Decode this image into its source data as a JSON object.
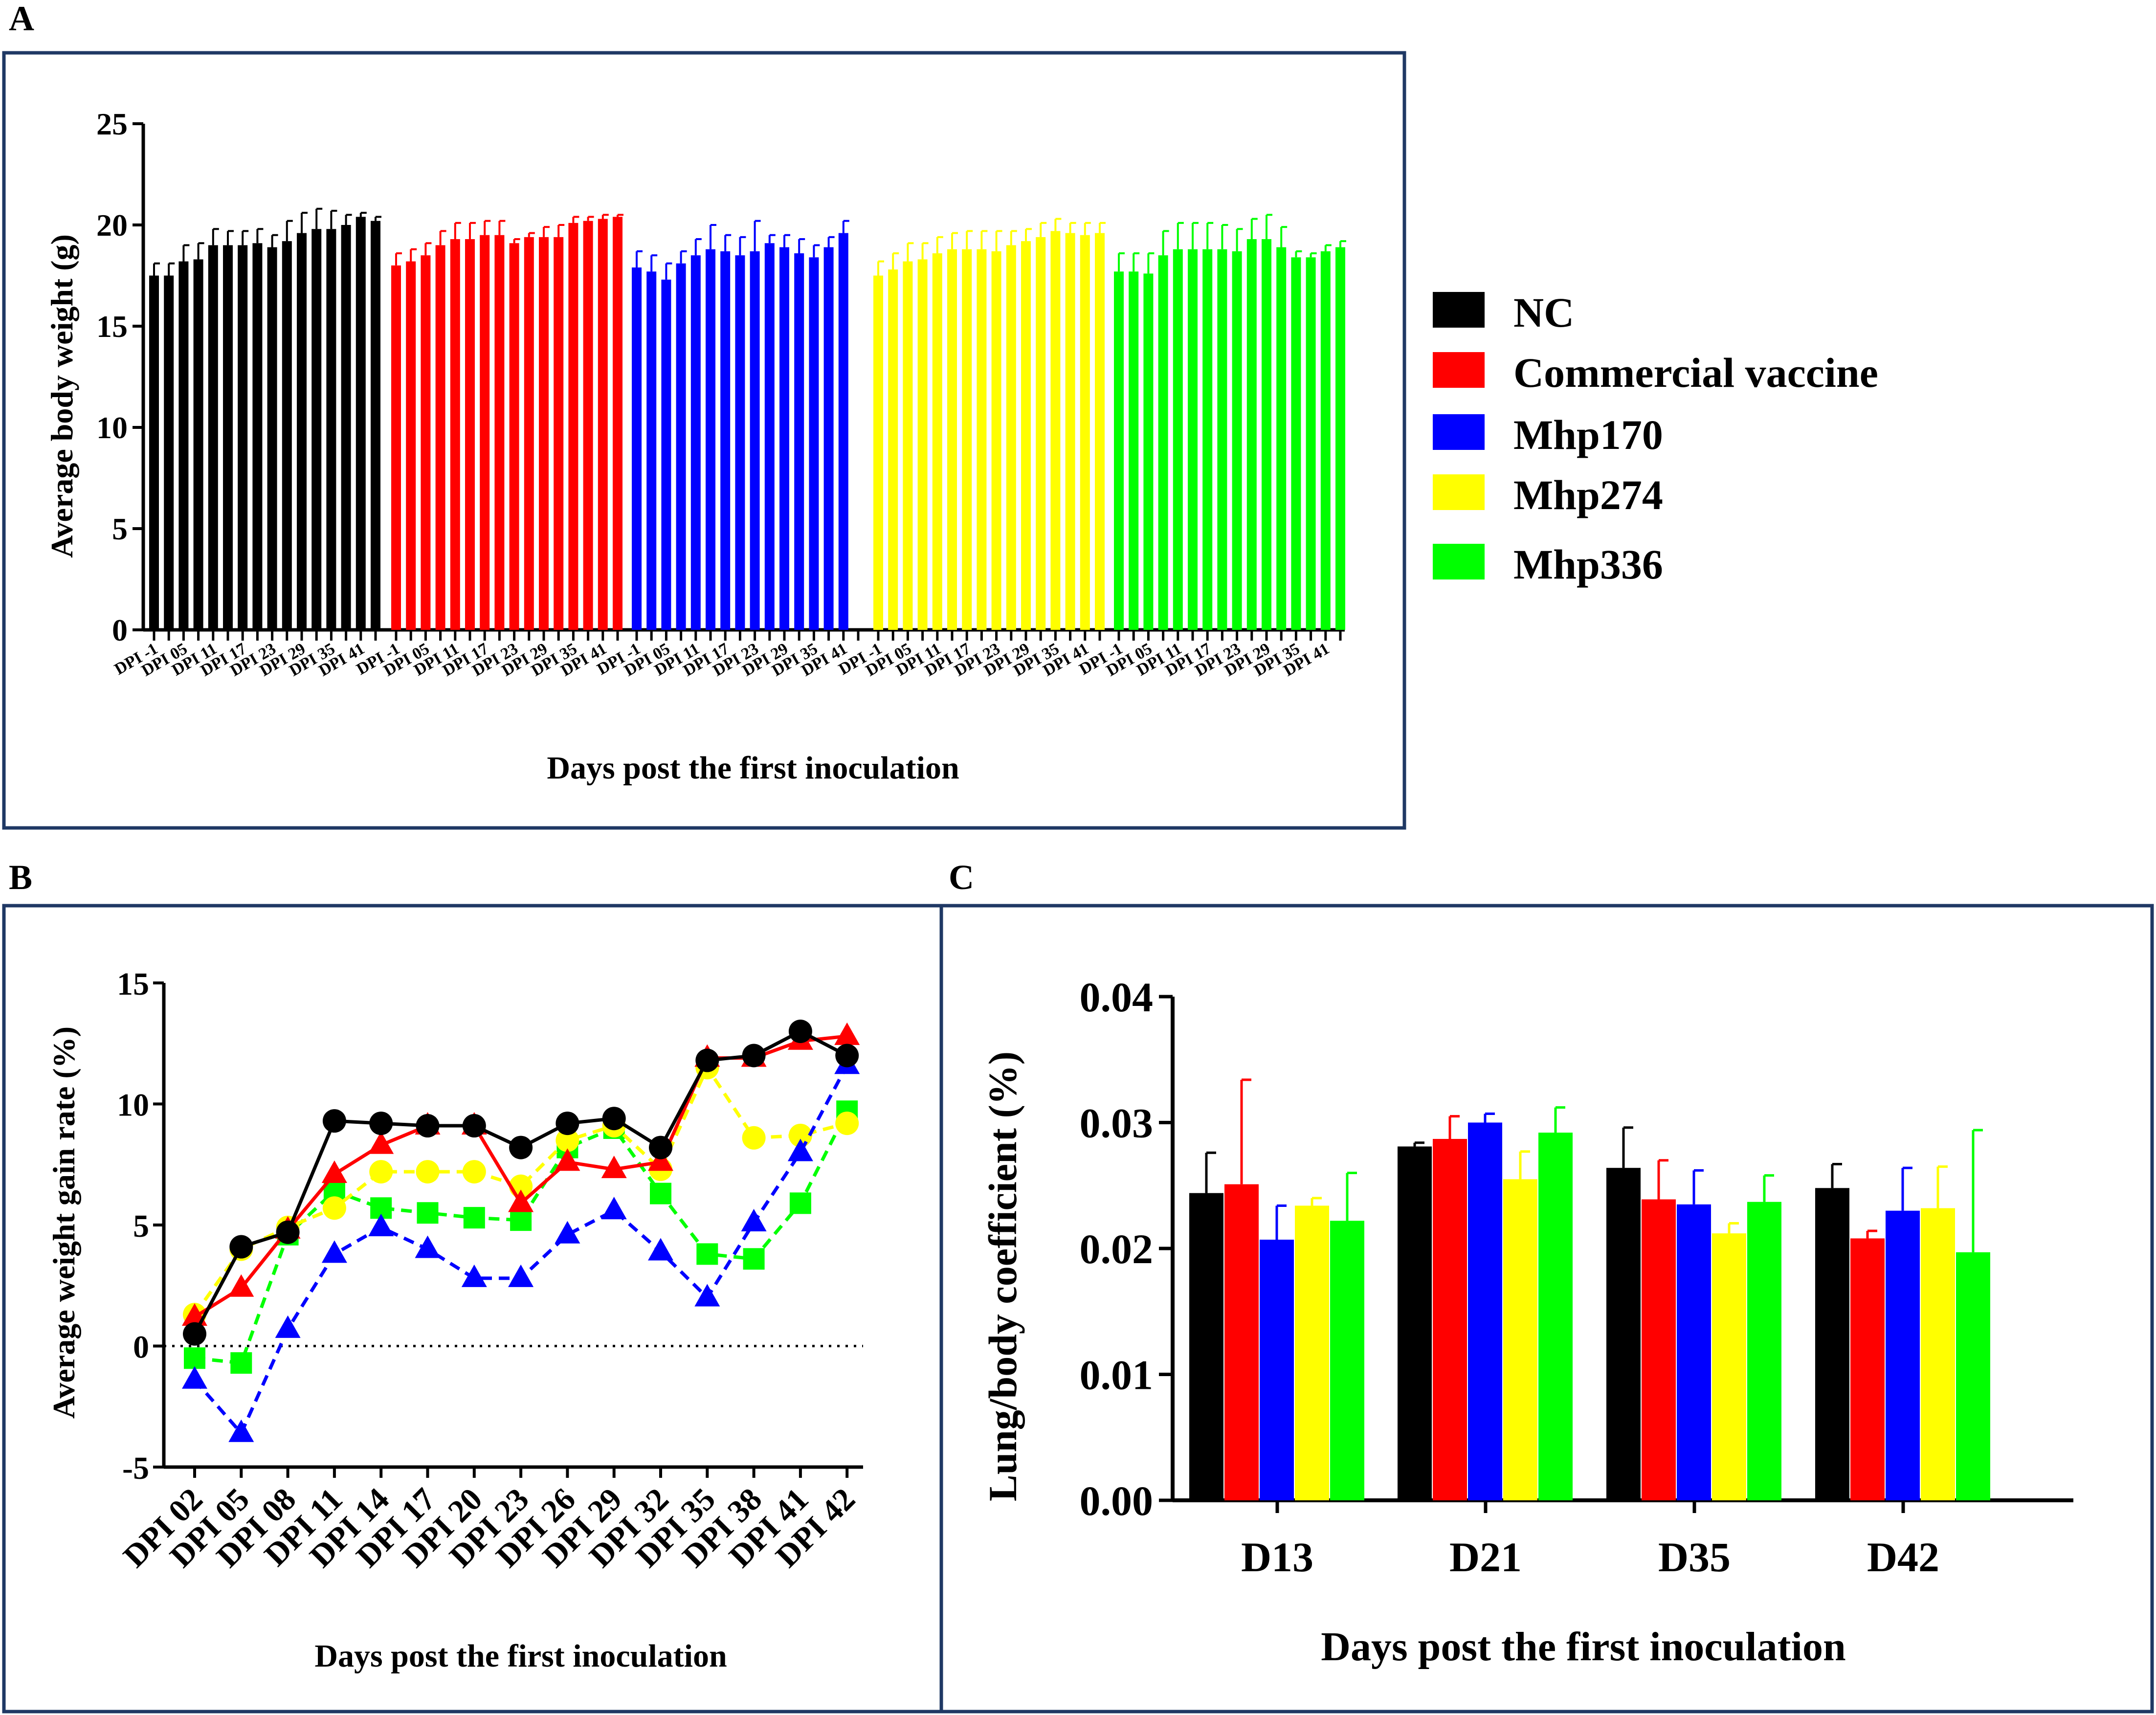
{
  "colors": {
    "NC": "#000000",
    "Commercial vaccine": "#ff0000",
    "Mhp170": "#0000ff",
    "Mhp274": "#ffff00",
    "Mhp336": "#00ff00",
    "frame": "#1f3864"
  },
  "panel_labels": {
    "a": "A",
    "b": "B",
    "c": "C"
  },
  "legend": [
    "NC",
    "Commercial vaccine",
    "Mhp170",
    "Mhp274",
    "Mhp336"
  ],
  "chart_data": [
    {
      "id": "A",
      "type": "bar",
      "title": "",
      "xlabel": "Days post the first inoculation",
      "ylabel": "Average body weight (g)",
      "ylim": [
        0,
        25
      ],
      "yticks": [
        0,
        5,
        10,
        15,
        20,
        25
      ],
      "tick_labels": [
        "DPI -1",
        "DPI 05",
        "DPI 11",
        "DPI 17",
        "DPI 23",
        "DPI 29",
        "DPI 35",
        "DPI 41"
      ],
      "series": [
        {
          "name": "NC",
          "values": [
            17.5,
            17.5,
            18.2,
            18.3,
            19.0,
            19.0,
            19.0,
            19.1,
            18.9,
            19.2,
            19.6,
            19.8,
            19.8,
            20.0,
            20.4,
            20.2
          ],
          "errors": [
            0.6,
            0.6,
            0.8,
            0.8,
            0.8,
            0.7,
            0.7,
            0.7,
            0.6,
            1.0,
            1.0,
            1.0,
            0.9,
            0.5,
            0.2,
            0.2
          ]
        },
        {
          "name": "Commercial vaccine",
          "values": [
            18.0,
            18.2,
            18.5,
            19.0,
            19.3,
            19.3,
            19.5,
            19.5,
            19.1,
            19.4,
            19.4,
            19.4,
            20.1,
            20.2,
            20.3,
            20.4
          ],
          "errors": [
            0.6,
            0.6,
            0.6,
            0.7,
            0.8,
            0.8,
            0.7,
            0.7,
            0.2,
            0.2,
            0.5,
            0.6,
            0.3,
            0.2,
            0.2,
            0.1
          ]
        },
        {
          "name": "Mhp170",
          "values": [
            17.9,
            17.7,
            17.3,
            18.1,
            18.5,
            18.8,
            18.7,
            18.5,
            18.7,
            19.1,
            18.9,
            18.6,
            18.4,
            18.9,
            19.6,
            null
          ],
          "errors": [
            0.8,
            0.8,
            0.8,
            0.6,
            0.8,
            1.2,
            0.8,
            0.9,
            1.5,
            0.4,
            0.6,
            0.7,
            0.6,
            0.5,
            0.6,
            null
          ]
        },
        {
          "name": "Mhp274",
          "values": [
            17.5,
            17.8,
            18.2,
            18.3,
            18.6,
            18.8,
            18.8,
            18.8,
            18.7,
            19.0,
            19.2,
            19.4,
            19.7,
            19.6,
            19.5,
            19.6
          ],
          "errors": [
            0.7,
            0.8,
            0.9,
            0.8,
            0.8,
            0.8,
            0.9,
            0.9,
            1.0,
            0.7,
            0.6,
            0.7,
            0.6,
            0.5,
            0.6,
            0.5
          ]
        },
        {
          "name": "Mhp336",
          "values": [
            17.7,
            17.7,
            17.6,
            18.5,
            18.8,
            18.8,
            18.8,
            18.8,
            18.7,
            19.3,
            19.3,
            18.9,
            18.4,
            18.4,
            18.7,
            18.9
          ],
          "errors": [
            0.9,
            0.9,
            1.0,
            1.2,
            1.3,
            1.3,
            1.3,
            1.2,
            1.1,
            1.0,
            1.2,
            1.0,
            0.3,
            0.2,
            0.3,
            0.3
          ]
        }
      ]
    },
    {
      "id": "B",
      "type": "line",
      "title": "",
      "xlabel": "Days post the first inoculation",
      "ylabel": "Average weight gain rate (%)",
      "ylim": [
        -5,
        15
      ],
      "yticks": [
        -5,
        0,
        5,
        10,
        15
      ],
      "categories": [
        "DPI 02",
        "DPI 05",
        "DPI 08",
        "DPI 11",
        "DPI 14",
        "DPI 17",
        "DPI 20",
        "DPI 23",
        "DPI 26",
        "DPI 29",
        "DPI 32",
        "DPI 35",
        "DPI 38",
        "DPI 41",
        "DPI 42"
      ],
      "series": [
        {
          "name": "NC",
          "marker": "circle",
          "dashed": false,
          "values": [
            0.5,
            4.1,
            4.7,
            9.3,
            9.2,
            9.1,
            9.1,
            8.2,
            9.2,
            9.4,
            8.2,
            11.8,
            12.0,
            13.0,
            12.0
          ]
        },
        {
          "name": "Commercial vaccine",
          "marker": "triangle",
          "dashed": false,
          "values": [
            1.2,
            2.4,
            4.8,
            7.1,
            8.3,
            9.1,
            9.1,
            5.9,
            7.6,
            7.3,
            7.6,
            11.9,
            11.9,
            12.6,
            12.8
          ]
        },
        {
          "name": "Mhp170",
          "marker": "triangle",
          "dashed": true,
          "values": [
            -1.4,
            -3.6,
            0.7,
            3.8,
            4.9,
            4.0,
            2.8,
            2.8,
            4.6,
            5.6,
            3.9,
            2.0,
            5.1,
            8.0,
            11.6
          ]
        },
        {
          "name": "Mhp274",
          "marker": "circle",
          "dashed": true,
          "values": [
            1.3,
            4.0,
            4.9,
            5.7,
            7.2,
            7.2,
            7.2,
            6.6,
            8.5,
            9.1,
            7.3,
            11.5,
            8.6,
            8.7,
            9.2
          ]
        },
        {
          "name": "Mhp336",
          "marker": "square",
          "dashed": true,
          "values": [
            -0.5,
            -0.7,
            4.6,
            6.4,
            5.7,
            5.5,
            5.3,
            5.2,
            8.2,
            9.0,
            6.3,
            3.8,
            3.6,
            5.9,
            9.7
          ]
        }
      ]
    },
    {
      "id": "C",
      "type": "bar",
      "title": "",
      "xlabel": "Days post the first inoculation",
      "ylabel": "Lung/body coefficient (%)",
      "ylim": [
        0,
        0.04
      ],
      "yticks": [
        "0.00",
        "0.01",
        "0.02",
        "0.03",
        "0.04"
      ],
      "categories": [
        "D13",
        "D21",
        "D35",
        "D42"
      ],
      "series": [
        {
          "name": "NC",
          "values": [
            0.0244,
            0.0281,
            0.0264,
            0.0248
          ],
          "errors": [
            0.0032,
            0.0003,
            0.0032,
            0.0019
          ]
        },
        {
          "name": "Commercial vaccine",
          "values": [
            0.0251,
            0.0287,
            0.0239,
            0.0208
          ],
          "errors": [
            0.0083,
            0.0018,
            0.0031,
            0.0006
          ]
        },
        {
          "name": "Mhp170",
          "values": [
            0.0207,
            0.03,
            0.0235,
            0.023
          ],
          "errors": [
            0.0027,
            0.0007,
            0.0027,
            0.0034
          ]
        },
        {
          "name": "Mhp274",
          "values": [
            0.0234,
            0.0255,
            0.0212,
            0.0232
          ],
          "errors": [
            0.0006,
            0.0022,
            0.0008,
            0.0033
          ]
        },
        {
          "name": "Mhp336",
          "values": [
            0.0222,
            0.0292,
            0.0237,
            0.0197
          ],
          "errors": [
            0.0038,
            0.002,
            0.0021,
            0.0097
          ]
        }
      ]
    }
  ]
}
